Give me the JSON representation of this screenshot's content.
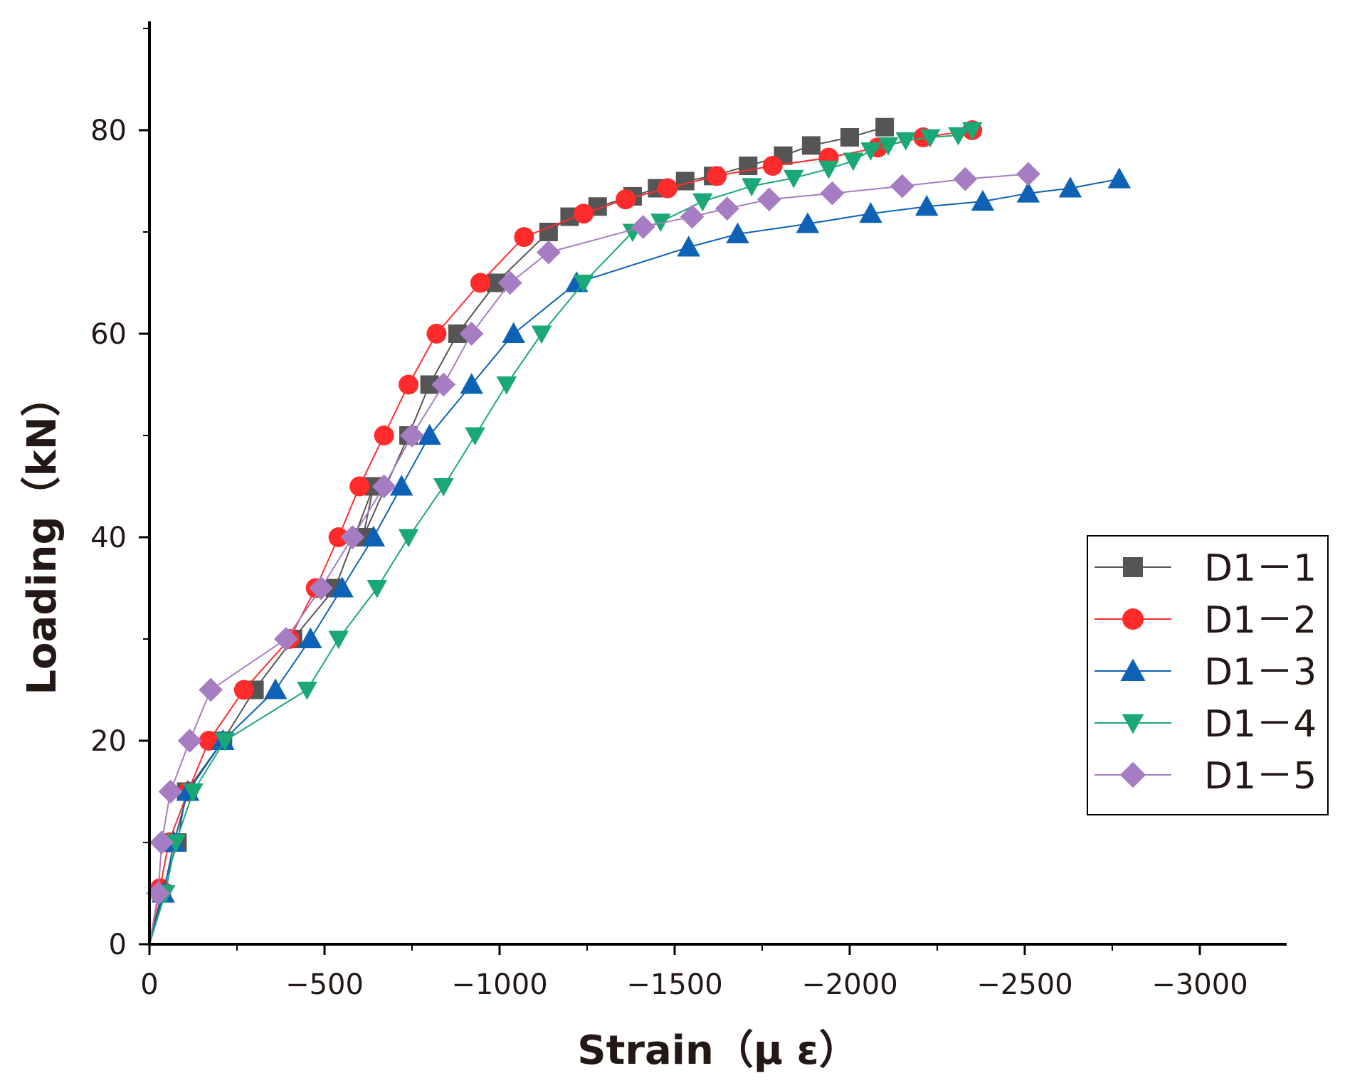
{
  "chart_data": {
    "type": "line",
    "xlabel": "Strain（μ ε）",
    "ylabel": "Loading（kN）",
    "xlim": [
      0,
      3250
    ],
    "ylim": [
      0,
      90
    ],
    "x_ticks": [
      {
        "value": 0,
        "label": "0"
      },
      {
        "value": 500,
        "label": "−500"
      },
      {
        "value": 1000,
        "label": "−1000"
      },
      {
        "value": 1500,
        "label": "−1500"
      },
      {
        "value": 2000,
        "label": "−2000"
      },
      {
        "value": 2500,
        "label": "−2500"
      },
      {
        "value": 3000,
        "label": "−3000"
      }
    ],
    "y_ticks": [
      {
        "value": 0,
        "label": "0"
      },
      {
        "value": 20,
        "label": "20"
      },
      {
        "value": 40,
        "label": "40"
      },
      {
        "value": 60,
        "label": "60"
      },
      {
        "value": 80,
        "label": "80"
      }
    ],
    "legend_position": "right",
    "series": [
      {
        "name": "D1－1",
        "color": "#555555",
        "marker": "square",
        "points": [
          [
            0,
            0
          ],
          [
            35,
            5
          ],
          [
            80,
            10
          ],
          [
            105,
            15
          ],
          [
            210,
            20
          ],
          [
            300,
            25
          ],
          [
            410,
            30
          ],
          [
            530,
            35
          ],
          [
            640,
            45
          ],
          [
            610,
            40
          ],
          [
            740,
            50
          ],
          [
            800,
            55
          ],
          [
            880,
            60
          ],
          [
            990,
            65
          ],
          [
            1140,
            70
          ],
          [
            1200,
            71.5
          ],
          [
            1280,
            72.5
          ],
          [
            1380,
            73.5
          ],
          [
            1450,
            74.3
          ],
          [
            1530,
            75
          ],
          [
            1610,
            75.5
          ],
          [
            1710,
            76.5
          ],
          [
            1810,
            77.5
          ],
          [
            1890,
            78.5
          ],
          [
            2000,
            79.3
          ],
          [
            2100,
            80.3
          ]
        ]
      },
      {
        "name": "D1－2",
        "color": "#ff2b2b",
        "marker": "circle",
        "points": [
          [
            0,
            0
          ],
          [
            30,
            5.5
          ],
          [
            55,
            10
          ],
          [
            110,
            15
          ],
          [
            170,
            20
          ],
          [
            270,
            25
          ],
          [
            400,
            30
          ],
          [
            475,
            35
          ],
          [
            540,
            40
          ],
          [
            600,
            45
          ],
          [
            670,
            50
          ],
          [
            740,
            55
          ],
          [
            820,
            60
          ],
          [
            945,
            65
          ],
          [
            1070,
            69.5
          ],
          [
            1240,
            71.8
          ],
          [
            1360,
            73.2
          ],
          [
            1480,
            74.3
          ],
          [
            1620,
            75.5
          ],
          [
            1780,
            76.5
          ],
          [
            1940,
            77.3
          ],
          [
            2080,
            78.3
          ],
          [
            2210,
            79.3
          ],
          [
            2350,
            80
          ]
        ]
      },
      {
        "name": "D1－3",
        "color": "#0d62b5",
        "marker": "triangle-up",
        "points": [
          [
            0,
            0
          ],
          [
            40,
            5
          ],
          [
            70,
            10
          ],
          [
            110,
            15
          ],
          [
            210,
            20
          ],
          [
            360,
            25
          ],
          [
            460,
            30
          ],
          [
            550,
            35
          ],
          [
            640,
            40
          ],
          [
            720,
            45
          ],
          [
            800,
            50
          ],
          [
            920,
            55
          ],
          [
            1040,
            60
          ],
          [
            1220,
            65
          ],
          [
            1540,
            68.5
          ],
          [
            1680,
            69.8
          ],
          [
            1880,
            70.8
          ],
          [
            2060,
            71.8
          ],
          [
            2220,
            72.5
          ],
          [
            2380,
            73
          ],
          [
            2510,
            73.8
          ],
          [
            2630,
            74.3
          ],
          [
            2770,
            75.2
          ]
        ]
      },
      {
        "name": "D1－4",
        "color": "#1aa876",
        "marker": "triangle-down",
        "points": [
          [
            0,
            0
          ],
          [
            45,
            5
          ],
          [
            75,
            10
          ],
          [
            125,
            15
          ],
          [
            215,
            20
          ],
          [
            450,
            25
          ],
          [
            540,
            30
          ],
          [
            650,
            35
          ],
          [
            740,
            40
          ],
          [
            840,
            45
          ],
          [
            930,
            50
          ],
          [
            1020,
            55
          ],
          [
            1120,
            60
          ],
          [
            1240,
            65
          ],
          [
            1380,
            70
          ],
          [
            1460,
            71
          ],
          [
            1580,
            73
          ],
          [
            1720,
            74.5
          ],
          [
            1840,
            75.3
          ],
          [
            1940,
            76.2
          ],
          [
            2010,
            77
          ],
          [
            2060,
            78
          ],
          [
            2110,
            78.5
          ],
          [
            2160,
            79
          ],
          [
            2230,
            79.3
          ],
          [
            2310,
            79.5
          ],
          [
            2350,
            80
          ]
        ]
      },
      {
        "name": "D1－5",
        "color": "#a67dc2",
        "marker": "diamond",
        "points": [
          [
            0,
            0
          ],
          [
            25,
            5
          ],
          [
            35,
            10
          ],
          [
            60,
            15
          ],
          [
            115,
            20
          ],
          [
            175,
            25
          ],
          [
            390,
            30
          ],
          [
            490,
            35
          ],
          [
            580,
            40
          ],
          [
            670,
            45
          ],
          [
            750,
            50
          ],
          [
            840,
            55
          ],
          [
            920,
            60
          ],
          [
            1030,
            65
          ],
          [
            1140,
            68
          ],
          [
            1410,
            70.5
          ],
          [
            1550,
            71.5
          ],
          [
            1650,
            72.3
          ],
          [
            1770,
            73.2
          ],
          [
            1950,
            73.8
          ],
          [
            2150,
            74.5
          ],
          [
            2330,
            75.2
          ],
          [
            2510,
            75.7
          ]
        ]
      }
    ]
  }
}
